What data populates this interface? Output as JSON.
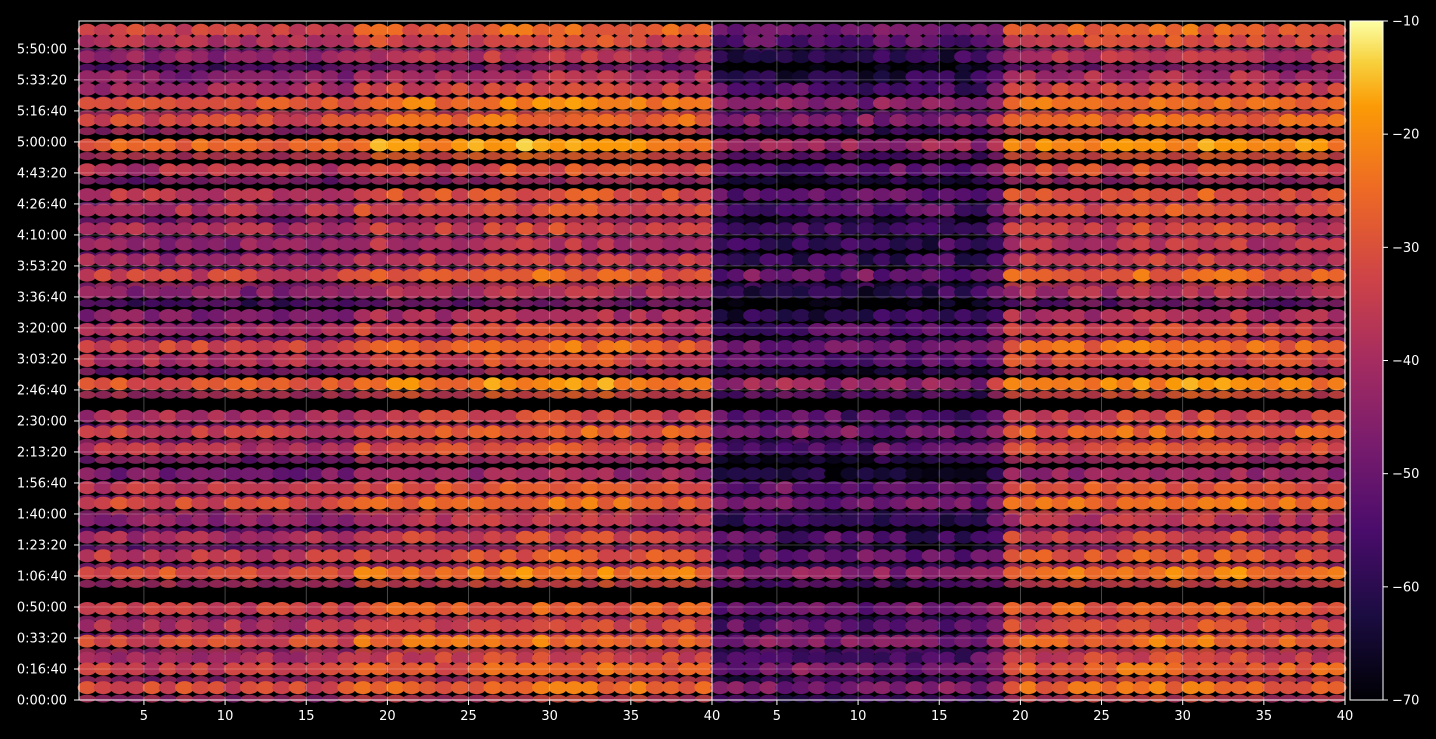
{
  "chart_data": {
    "type": "heatmap",
    "colormap": "inferno",
    "background_color": "#000000",
    "text_color": "#ffffff",
    "grid": true,
    "colorbar": {
      "location": "right",
      "range": [
        -70,
        -10
      ],
      "ticks": [
        -10,
        -20,
        -30,
        -40,
        -50,
        -60,
        -70
      ],
      "tick_labels": [
        "−10",
        "−20",
        "−30",
        "−40",
        "−50",
        "−60",
        "−70"
      ]
    },
    "y_axis": {
      "range_seconds": [
        0,
        21900
      ],
      "ticks_seconds": [
        0,
        1000,
        2000,
        3000,
        4000,
        5000,
        6000,
        7000,
        8000,
        9000,
        10000,
        11000,
        12000,
        13000,
        14000,
        15000,
        16000,
        17000,
        18000,
        19000,
        20000,
        21000
      ],
      "tick_labels": [
        "0:00:00",
        "0:16:40",
        "0:33:20",
        "0:50:00",
        "1:06:40",
        "1:23:20",
        "1:40:00",
        "1:56:40",
        "2:13:20",
        "2:30:00",
        "2:46:40",
        "3:03:20",
        "3:20:00",
        "3:36:40",
        "3:53:20",
        "4:10:00",
        "4:26:40",
        "4:43:20",
        "5:00:00",
        "5:16:40",
        "5:33:20",
        "5:50:00"
      ]
    },
    "panels": [
      {
        "name": "",
        "x_range": [
          1,
          40
        ],
        "ticks": [
          5,
          10,
          15,
          20,
          25,
          30,
          35,
          40
        ],
        "tick_labels": [
          "5",
          "10",
          "15",
          "20",
          "25",
          "30",
          "35",
          "40"
        ],
        "gate": 0,
        "gain": 1.0
      },
      {
        "name": "",
        "x_range": [
          1,
          40
        ],
        "ticks": [
          5,
          10,
          15,
          20,
          25,
          30,
          35,
          40
        ],
        "tick_labels": [
          "5",
          "10",
          "15",
          "20",
          "25",
          "30",
          "35",
          "40"
        ],
        "gate": 19,
        "gain": 1.0
      }
    ],
    "bands": [
      {
        "t": 21600,
        "level": -34
      },
      {
        "t": 21250,
        "level": -38
      },
      {
        "t": 20750,
        "level": -44
      },
      {
        "t": 20100,
        "level": -46
      },
      {
        "t": 19700,
        "level": -40
      },
      {
        "t": 19250,
        "level": -30
      },
      {
        "t": 18700,
        "level": -32
      },
      {
        "t": 17900,
        "level": -26
      },
      {
        "t": 17100,
        "level": -38
      },
      {
        "t": 16300,
        "level": -36
      },
      {
        "t": 15800,
        "level": -38
      },
      {
        "t": 15200,
        "level": -40
      },
      {
        "t": 14700,
        "level": -44
      },
      {
        "t": 14200,
        "level": -42
      },
      {
        "t": 13700,
        "level": -34
      },
      {
        "t": 13150,
        "level": -46
      },
      {
        "t": 12400,
        "level": -46
      },
      {
        "t": 11950,
        "level": -40
      },
      {
        "t": 11400,
        "level": -32
      },
      {
        "t": 10950,
        "level": -38
      },
      {
        "t": 10200,
        "level": -28
      },
      {
        "t": 9150,
        "level": -40
      },
      {
        "t": 8650,
        "level": -34
      },
      {
        "t": 8100,
        "level": -38
      },
      {
        "t": 7300,
        "level": -48
      },
      {
        "t": 6850,
        "level": -36
      },
      {
        "t": 6350,
        "level": -32
      },
      {
        "t": 5800,
        "level": -44
      },
      {
        "t": 5250,
        "level": -40
      },
      {
        "t": 4650,
        "level": -36
      },
      {
        "t": 4100,
        "level": -30
      },
      {
        "t": 2950,
        "level": -34
      },
      {
        "t": 2400,
        "level": -38
      },
      {
        "t": 1900,
        "level": -32
      },
      {
        "t": 1350,
        "level": -40
      },
      {
        "t": 1000,
        "level": -34
      },
      {
        "t": 400,
        "level": -32
      }
    ]
  }
}
